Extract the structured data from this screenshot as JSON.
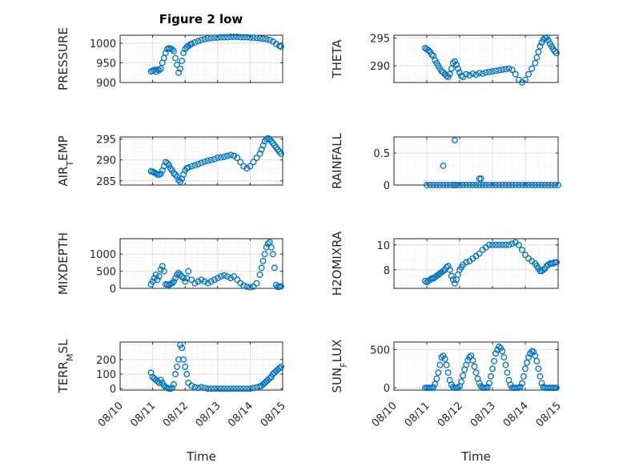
{
  "chart_data": [
    {
      "type": "scatter",
      "title": "Figure 2 low",
      "ylabel": "PRESSURE",
      "ylim": [
        900,
        1020
      ],
      "yticks": [
        900,
        950,
        1000
      ],
      "grid": "major-and-minor",
      "marker_color": "#0072BD",
      "series": [
        {
          "x_days": [
            0.95,
            1.0,
            1.05,
            1.1,
            1.15,
            1.2,
            1.25,
            1.3,
            1.35,
            1.4,
            1.45,
            1.5,
            1.55,
            1.6,
            1.65,
            1.7,
            1.75,
            1.8,
            1.85,
            1.9,
            1.95,
            2.0,
            2.05,
            2.1,
            2.15,
            2.2,
            2.3,
            2.4,
            2.5,
            2.6,
            2.7,
            2.8,
            2.9,
            3.0,
            3.1,
            3.2,
            3.3,
            3.4,
            3.5,
            3.6,
            3.7,
            3.8,
            3.9,
            4.0,
            4.1,
            4.2,
            4.3,
            4.4,
            4.5,
            4.6,
            4.7,
            4.8,
            4.9,
            4.95
          ],
          "y": [
            928,
            930,
            932,
            927,
            933,
            931,
            935,
            950,
            962,
            975,
            985,
            987,
            986,
            984,
            980,
            962,
            945,
            925,
            935,
            955,
            975,
            985,
            990,
            993,
            996,
            998,
            1002,
            1005,
            1008,
            1010,
            1012,
            1013,
            1014,
            1014,
            1015,
            1015,
            1015,
            1016,
            1016,
            1016,
            1015,
            1015,
            1015,
            1014,
            1014,
            1013,
            1012,
            1011,
            1010,
            1008,
            1004,
            998,
            993,
            991
          ]
        }
      ]
    },
    {
      "type": "scatter",
      "ylabel": "THETA",
      "ylim": [
        287,
        295.5
      ],
      "yticks": [
        290,
        295
      ],
      "grid": "major-and-minor",
      "marker_color": "#0072BD",
      "series": [
        {
          "x_days": [
            0.95,
            1.0,
            1.05,
            1.1,
            1.15,
            1.2,
            1.25,
            1.3,
            1.35,
            1.4,
            1.45,
            1.5,
            1.55,
            1.6,
            1.65,
            1.7,
            1.75,
            1.8,
            1.85,
            1.9,
            1.95,
            2.0,
            2.05,
            2.1,
            2.2,
            2.3,
            2.4,
            2.5,
            2.6,
            2.7,
            2.8,
            2.9,
            3.0,
            3.1,
            3.2,
            3.3,
            3.4,
            3.5,
            3.6,
            3.7,
            3.8,
            3.9,
            4.0,
            4.1,
            4.2,
            4.3,
            4.35,
            4.4,
            4.45,
            4.5,
            4.55,
            4.6,
            4.65,
            4.7,
            4.75,
            4.8,
            4.85,
            4.9,
            4.95
          ],
          "y": [
            293.2,
            293.0,
            292.8,
            292.5,
            292.0,
            291.8,
            291.0,
            290.5,
            290.0,
            289.5,
            289.0,
            288.8,
            288.5,
            288.2,
            288.0,
            288.5,
            289.5,
            290.5,
            290.8,
            290.2,
            289.5,
            288.8,
            288.2,
            288.0,
            288.5,
            288.3,
            288.6,
            288.4,
            288.7,
            288.6,
            288.8,
            288.9,
            289.0,
            289.1,
            289.2,
            289.3,
            289.4,
            289.5,
            289.3,
            288.5,
            287.5,
            287.0,
            287.5,
            288.5,
            289.5,
            290.5,
            291.5,
            292.5,
            293.5,
            294.2,
            294.7,
            295.0,
            295.1,
            294.6,
            294.0,
            293.5,
            293.0,
            292.6,
            292.3
          ]
        }
      ]
    },
    {
      "type": "scatter",
      "ylabel": "AIR_TEMP",
      "ylim": [
        284,
        295.5
      ],
      "yticks": [
        285,
        290,
        295
      ],
      "grid": "major-and-minor",
      "marker_color": "#0072BD",
      "series": [
        {
          "x_days": [
            0.95,
            1.0,
            1.05,
            1.1,
            1.15,
            1.2,
            1.25,
            1.3,
            1.35,
            1.4,
            1.45,
            1.5,
            1.55,
            1.6,
            1.65,
            1.7,
            1.75,
            1.8,
            1.85,
            1.9,
            1.95,
            2.0,
            2.05,
            2.1,
            2.2,
            2.3,
            2.4,
            2.5,
            2.6,
            2.7,
            2.8,
            2.9,
            3.0,
            3.1,
            3.2,
            3.3,
            3.4,
            3.5,
            3.6,
            3.7,
            3.8,
            3.9,
            4.0,
            4.1,
            4.2,
            4.3,
            4.35,
            4.4,
            4.45,
            4.5,
            4.55,
            4.6,
            4.65,
            4.7,
            4.75,
            4.8,
            4.85,
            4.9,
            4.95
          ],
          "y": [
            287.3,
            287.2,
            287.0,
            286.8,
            286.5,
            286.5,
            286.7,
            287.5,
            288.5,
            289.5,
            289.2,
            288.8,
            288.0,
            287.5,
            286.8,
            286.5,
            286.0,
            285.2,
            284.8,
            285.5,
            286.5,
            287.5,
            288.0,
            288.2,
            288.5,
            288.7,
            289.0,
            289.3,
            289.6,
            289.8,
            290.0,
            290.2,
            290.5,
            290.6,
            290.8,
            291.0,
            291.2,
            291.0,
            290.5,
            289.5,
            288.5,
            288.0,
            288.5,
            289.5,
            290.5,
            291.5,
            292.5,
            293.5,
            294.5,
            295.0,
            295.2,
            295.0,
            294.5,
            294.0,
            293.5,
            293.0,
            292.5,
            292.0,
            291.5
          ]
        }
      ]
    },
    {
      "type": "scatter",
      "ylabel": "RAINFALL",
      "ylim": [
        0,
        0.75
      ],
      "yticks": [
        0,
        0.5
      ],
      "grid": "major-and-minor",
      "marker_color": "#0072BD",
      "series": [
        {
          "x_days": [
            1.0,
            1.1,
            1.2,
            1.3,
            1.4,
            1.5,
            1.6,
            1.7,
            1.8,
            1.85,
            1.9,
            2.0,
            2.1,
            2.2,
            2.3,
            2.4,
            2.5,
            2.6,
            2.7,
            2.8,
            2.9,
            3.0,
            3.1,
            3.2,
            3.3,
            3.4,
            3.5,
            3.6,
            3.7,
            3.8,
            3.9,
            4.0,
            4.1,
            4.2,
            4.3,
            4.4,
            4.5,
            4.6,
            4.7,
            4.8,
            4.9,
            5.0,
            1.5,
            1.85,
            2.6,
            2.65
          ],
          "y": [
            0,
            0,
            0,
            0,
            0,
            0,
            0,
            0,
            0,
            0,
            0,
            0,
            0,
            0,
            0,
            0,
            0,
            0,
            0,
            0,
            0,
            0,
            0,
            0,
            0,
            0,
            0,
            0,
            0,
            0,
            0,
            0,
            0,
            0,
            0,
            0,
            0,
            0,
            0,
            0,
            0,
            0,
            0.3,
            0.7,
            0.1,
            0.1
          ]
        }
      ]
    },
    {
      "type": "scatter",
      "ylabel": "MIXDEPTH",
      "ylim": [
        0,
        1450
      ],
      "yticks": [
        0,
        500,
        1000
      ],
      "grid": "major-and-minor",
      "marker_color": "#0072BD",
      "series": [
        {
          "x_days": [
            0.95,
            1.0,
            1.05,
            1.1,
            1.15,
            1.2,
            1.25,
            1.3,
            1.35,
            1.4,
            1.45,
            1.5,
            1.55,
            1.6,
            1.65,
            1.7,
            1.75,
            1.8,
            1.85,
            1.9,
            1.95,
            2.0,
            2.05,
            2.1,
            2.2,
            2.3,
            2.4,
            2.5,
            2.6,
            2.7,
            2.8,
            2.9,
            3.0,
            3.1,
            3.2,
            3.3,
            3.4,
            3.5,
            3.6,
            3.7,
            3.8,
            3.9,
            4.0,
            4.1,
            4.2,
            4.3,
            4.35,
            4.4,
            4.45,
            4.5,
            4.55,
            4.6,
            4.65,
            4.7,
            4.75,
            4.8,
            4.85,
            4.9,
            4.95
          ],
          "y": [
            120,
            200,
            300,
            400,
            250,
            350,
            550,
            650,
            500,
            120,
            110,
            100,
            130,
            150,
            200,
            300,
            400,
            450,
            400,
            350,
            300,
            200,
            300,
            500,
            250,
            150,
            200,
            250,
            200,
            150,
            200,
            250,
            300,
            350,
            380,
            350,
            300,
            350,
            250,
            150,
            80,
            50,
            30,
            50,
            150,
            400,
            600,
            800,
            1000,
            1200,
            1300,
            1350,
            1200,
            1000,
            600,
            100,
            40,
            50,
            60
          ]
        }
      ]
    },
    {
      "type": "scatter",
      "ylabel": "H2OMIXRA",
      "ylim": [
        6.5,
        10.5
      ],
      "yticks": [
        8,
        10
      ],
      "grid": "major-and-minor",
      "marker_color": "#0072BD",
      "series": [
        {
          "x_days": [
            0.95,
            1.0,
            1.05,
            1.1,
            1.15,
            1.2,
            1.25,
            1.3,
            1.35,
            1.4,
            1.45,
            1.5,
            1.55,
            1.6,
            1.65,
            1.7,
            1.75,
            1.8,
            1.85,
            1.9,
            1.95,
            2.0,
            2.05,
            2.1,
            2.2,
            2.3,
            2.4,
            2.5,
            2.6,
            2.7,
            2.8,
            2.9,
            3.0,
            3.1,
            3.2,
            3.3,
            3.4,
            3.5,
            3.6,
            3.7,
            3.8,
            3.9,
            4.0,
            4.1,
            4.2,
            4.3,
            4.35,
            4.4,
            4.45,
            4.5,
            4.55,
            4.6,
            4.65,
            4.7,
            4.75,
            4.8,
            4.85,
            4.9,
            4.95
          ],
          "y": [
            7.1,
            7.0,
            7.1,
            7.2,
            7.3,
            7.3,
            7.4,
            7.5,
            7.6,
            7.7,
            7.8,
            7.9,
            8.0,
            8.2,
            8.3,
            8.0,
            7.5,
            7.2,
            6.9,
            7.2,
            7.6,
            8.0,
            8.2,
            8.4,
            8.6,
            8.7,
            8.9,
            9.1,
            9.3,
            9.6,
            9.8,
            10.0,
            10.0,
            10.0,
            10.0,
            10.0,
            10.0,
            10.0,
            10.1,
            10.2,
            10.0,
            9.6,
            9.2,
            8.9,
            8.7,
            8.5,
            8.3,
            8.1,
            7.9,
            7.9,
            8.0,
            8.1,
            8.3,
            8.4,
            8.5,
            8.5,
            8.5,
            8.6,
            8.6
          ]
        }
      ]
    },
    {
      "type": "scatter",
      "ylabel": "TERR_MSL",
      "ylim": [
        -10,
        320
      ],
      "yticks": [
        0,
        100,
        200
      ],
      "grid": "major-and-minor",
      "marker_color": "#0072BD",
      "series": [
        {
          "x_days": [
            0.95,
            1.0,
            1.05,
            1.1,
            1.15,
            1.2,
            1.25,
            1.3,
            1.35,
            1.4,
            1.45,
            1.5,
            1.55,
            1.6,
            1.65,
            1.7,
            1.75,
            1.8,
            1.85,
            1.9,
            1.95,
            2.0,
            2.05,
            2.1,
            2.2,
            2.3,
            2.4,
            2.5,
            2.6,
            2.7,
            2.8,
            2.9,
            3.0,
            3.1,
            3.2,
            3.3,
            3.4,
            3.5,
            3.6,
            3.7,
            3.8,
            3.9,
            4.0,
            4.1,
            4.2,
            4.3,
            4.35,
            4.4,
            4.45,
            4.5,
            4.55,
            4.6,
            4.65,
            4.7,
            4.75,
            4.8,
            4.85,
            4.9,
            4.95
          ],
          "y": [
            110,
            80,
            70,
            60,
            50,
            40,
            60,
            40,
            20,
            10,
            5,
            0,
            0,
            5,
            30,
            100,
            150,
            200,
            300,
            280,
            200,
            150,
            100,
            40,
            20,
            10,
            5,
            10,
            5,
            0,
            0,
            0,
            0,
            0,
            0,
            0,
            0,
            0,
            0,
            0,
            0,
            0,
            0,
            5,
            10,
            15,
            20,
            30,
            40,
            50,
            60,
            70,
            80,
            100,
            110,
            120,
            130,
            140,
            150
          ]
        }
      ]
    },
    {
      "type": "scatter",
      "ylabel": "SUN_FLUX",
      "ylim": [
        -30,
        600
      ],
      "yticks": [
        0,
        500
      ],
      "grid": "major-and-minor",
      "marker_color": "#0072BD",
      "series": [
        {
          "x_days": [
            0.95,
            1.0,
            1.05,
            1.1,
            1.15,
            1.2,
            1.25,
            1.3,
            1.35,
            1.4,
            1.45,
            1.5,
            1.55,
            1.6,
            1.65,
            1.7,
            1.75,
            1.8,
            1.85,
            1.9,
            1.95,
            2.0,
            2.05,
            2.1,
            2.15,
            2.2,
            2.25,
            2.3,
            2.35,
            2.4,
            2.45,
            2.5,
            2.55,
            2.6,
            2.65,
            2.7,
            2.75,
            2.8,
            2.85,
            2.9,
            2.95,
            3.0,
            3.05,
            3.1,
            3.15,
            3.2,
            3.25,
            3.3,
            3.35,
            3.4,
            3.45,
            3.5,
            3.55,
            3.6,
            3.65,
            3.7,
            3.75,
            3.8,
            3.85,
            3.9,
            3.95,
            4.0,
            4.05,
            4.1,
            4.15,
            4.2,
            4.25,
            4.3,
            4.35,
            4.4,
            4.45,
            4.5,
            4.55,
            4.6,
            4.65,
            4.7,
            4.75,
            4.8,
            4.85,
            4.9,
            4.95
          ],
          "y": [
            0,
            0,
            0,
            0,
            0,
            10,
            50,
            120,
            200,
            300,
            400,
            420,
            380,
            300,
            200,
            100,
            40,
            10,
            0,
            0,
            0,
            20,
            80,
            160,
            240,
            300,
            360,
            400,
            420,
            360,
            280,
            200,
            120,
            60,
            20,
            0,
            0,
            0,
            10,
            60,
            150,
            250,
            350,
            450,
            500,
            540,
            520,
            480,
            400,
            300,
            200,
            100,
            40,
            0,
            0,
            0,
            0,
            0,
            10,
            60,
            150,
            250,
            330,
            400,
            450,
            480,
            470,
            420,
            350,
            250,
            150,
            60,
            10,
            0,
            0,
            0,
            0,
            0,
            0,
            0,
            0
          ]
        }
      ]
    }
  ],
  "xaxis": {
    "label": "Time",
    "tick_labels": [
      "08/10",
      "08/11",
      "08/12",
      "08/13",
      "08/14",
      "08/15"
    ],
    "xlim_days": [
      0,
      5
    ]
  },
  "style": {
    "marker_color": "#0072BD",
    "axis_color": "#262626",
    "grid_major": "#dfdfdf",
    "grid_minor": "#ececec"
  }
}
